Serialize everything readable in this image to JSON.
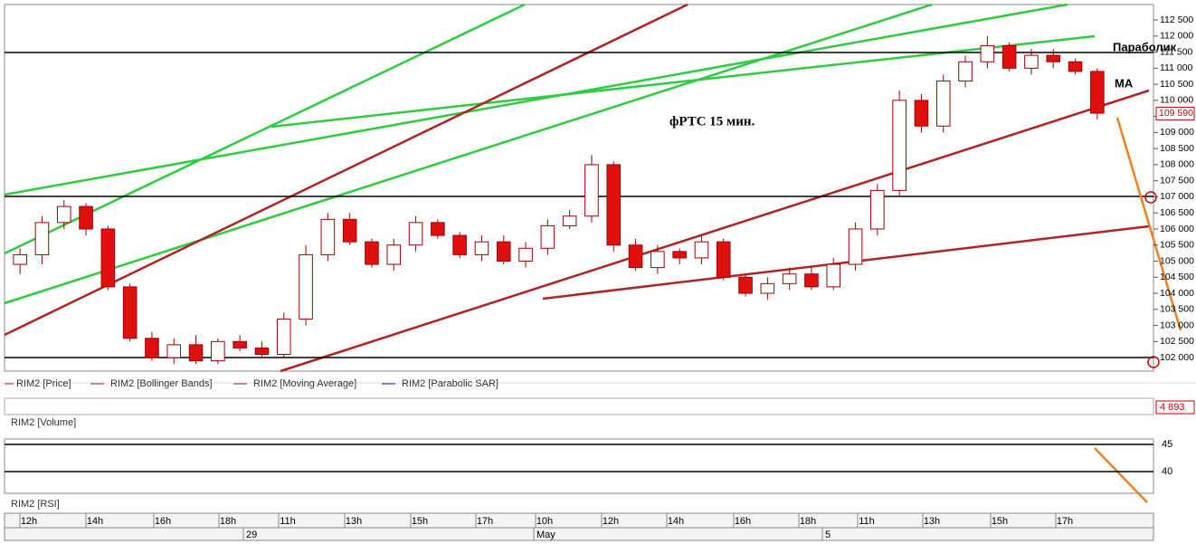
{
  "chart_data": {
    "type": "candlestick",
    "title": "фРТС  15 мин.",
    "annotations": [
      "Параболик",
      "МА"
    ],
    "legend": [
      "RIM2 [Price]",
      "RIM2 [Bollinger Bands]",
      "RIM2 [Moving Average]",
      "RIM2 [Parabolic SAR]"
    ],
    "open": [
      104900,
      105200,
      106200,
      106700,
      106000,
      104200,
      102600,
      102000,
      102400,
      101900,
      102500,
      102300,
      102100,
      103200,
      105200,
      106300,
      105600,
      104900,
      105500,
      106200,
      105800,
      105200,
      105600,
      105000,
      105400,
      106100,
      106400,
      108000,
      105500,
      104800,
      105300,
      105100,
      105600,
      104500,
      104000,
      104300,
      104600,
      104200,
      104900,
      106000,
      107200,
      110000,
      109200,
      110600,
      111200,
      111700,
      111000,
      111400,
      111200,
      110900
    ],
    "high": [
      105400,
      106400,
      106900,
      106800,
      106100,
      104300,
      102800,
      102600,
      102700,
      102600,
      102700,
      102500,
      103400,
      105500,
      106500,
      106500,
      105700,
      105700,
      106400,
      106300,
      105900,
      105800,
      105800,
      105600,
      106300,
      106600,
      108300,
      108100,
      105700,
      105500,
      105400,
      105800,
      105700,
      104600,
      104500,
      104800,
      104800,
      105100,
      106200,
      107400,
      110300,
      110200,
      110800,
      111400,
      112000,
      111800,
      111600,
      111600,
      111300,
      111000
    ],
    "low": [
      104600,
      104900,
      106000,
      105800,
      104100,
      102500,
      101900,
      101800,
      101800,
      101800,
      102200,
      102000,
      102000,
      103000,
      105000,
      105500,
      104800,
      104700,
      105300,
      105700,
      105100,
      105000,
      104900,
      104800,
      105200,
      106000,
      106200,
      105300,
      104700,
      104600,
      104900,
      104900,
      104400,
      103900,
      103800,
      104100,
      104100,
      104100,
      104700,
      105800,
      107000,
      109000,
      109000,
      110400,
      111000,
      110900,
      110800,
      111000,
      110800,
      109400
    ],
    "close": [
      105200,
      106200,
      106700,
      106000,
      104200,
      102600,
      102000,
      102400,
      101900,
      102500,
      102300,
      102100,
      103200,
      105200,
      106300,
      105600,
      104900,
      105500,
      106200,
      105800,
      105200,
      105600,
      105000,
      105400,
      106100,
      106400,
      108000,
      105500,
      104800,
      105300,
      105100,
      105600,
      104500,
      104000,
      104300,
      104600,
      104200,
      104900,
      106000,
      107200,
      110000,
      109200,
      110600,
      111200,
      111700,
      111000,
      111400,
      111200,
      110900,
      109600
    ],
    "ylim": [
      101580,
      112980
    ],
    "yticks": [
      {
        "value": 112500,
        "label": "112 500"
      },
      {
        "value": 112000,
        "label": "112 000"
      },
      {
        "value": 111500,
        "label": "111 500"
      },
      {
        "value": 111000,
        "label": "111 000"
      },
      {
        "value": 110500,
        "label": "110 500"
      },
      {
        "value": 110000,
        "label": "110 000"
      },
      {
        "value": 109500,
        "label": "109 500"
      },
      {
        "value": 109000,
        "label": "109 000"
      },
      {
        "value": 108500,
        "label": "108 500"
      },
      {
        "value": 108000,
        "label": "108 000"
      },
      {
        "value": 107500,
        "label": "107 500"
      },
      {
        "value": 107000,
        "label": "107 000"
      },
      {
        "value": 106500,
        "label": "106 500"
      },
      {
        "value": 106000,
        "label": "106 000"
      },
      {
        "value": 105500,
        "label": "105 500"
      },
      {
        "value": 105000,
        "label": "105 000"
      },
      {
        "value": 104500,
        "label": "104 500"
      },
      {
        "value": 104000,
        "label": "104 000"
      },
      {
        "value": 103500,
        "label": "103 500"
      },
      {
        "value": 103000,
        "label": "103 000"
      },
      {
        "value": 102500,
        "label": "102 500"
      },
      {
        "value": 102000,
        "label": "102 000"
      }
    ],
    "last_price": {
      "value": 109590,
      "label": "109 590"
    },
    "volume": {
      "legend": "RIM2 [Volume]",
      "last": {
        "value": 4893,
        "label": "4 893"
      }
    },
    "rsi": {
      "legend": "RIM2 [RSI]",
      "ylim": [
        36,
        46
      ],
      "yticks": [
        45,
        40
      ]
    },
    "time_axis": {
      "hours": [
        "12h",
        "14h",
        "16h",
        "18h",
        "11h",
        "13h",
        "15h",
        "17h",
        "10h",
        "12h",
        "14h",
        "16h",
        "18h",
        "11h",
        "13h",
        "15h",
        "17h"
      ],
      "days": [
        "29",
        "May",
        "5"
      ]
    }
  }
}
